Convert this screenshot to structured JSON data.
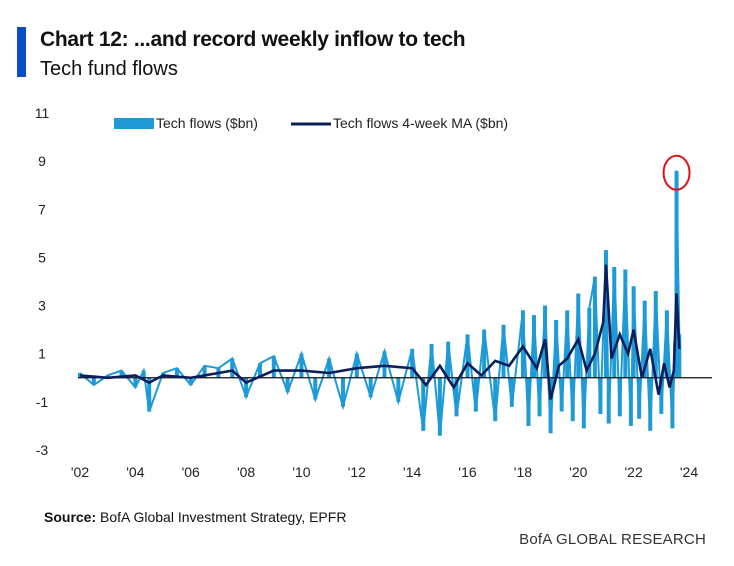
{
  "header": {
    "title": "Chart 12: ...and record weekly inflow to tech",
    "subtitle": "Tech fund flows"
  },
  "footer": {
    "source_label": "Source:",
    "source_text": "BofA Global Investment Strategy, EPFR",
    "brand": "BofA GLOBAL RESEARCH"
  },
  "colors": {
    "accent": "#0a4fc7",
    "flows": "#1e9ad6",
    "ma": "#0c1e5b",
    "highlight": "#e0121b"
  },
  "chart_data": {
    "type": "bar",
    "title": "Tech fund flows",
    "ylim": [
      -3,
      11
    ],
    "yticks": [
      -3,
      -1,
      1,
      3,
      5,
      7,
      9,
      11
    ],
    "xlim": [
      2002,
      2025
    ],
    "xticks": [
      {
        "value": 2002,
        "label": "'02"
      },
      {
        "value": 2004,
        "label": "'04"
      },
      {
        "value": 2006,
        "label": "'06"
      },
      {
        "value": 2008,
        "label": "'08"
      },
      {
        "value": 2010,
        "label": "'10"
      },
      {
        "value": 2012,
        "label": "'12"
      },
      {
        "value": 2014,
        "label": "'14"
      },
      {
        "value": 2016,
        "label": "'16"
      },
      {
        "value": 2018,
        "label": "'18"
      },
      {
        "value": 2020,
        "label": "'20"
      },
      {
        "value": 2022,
        "label": "'22"
      },
      {
        "value": 2024,
        "label": "'24"
      }
    ],
    "legend_position": "top",
    "annotation": {
      "type": "circle",
      "x": 2023.55,
      "y": 8.6,
      "note": "record weekly inflow"
    },
    "series": [
      {
        "name": "Tech flows ($bn)",
        "kind": "bar",
        "x": [
          2002.0,
          2002.5,
          2003.0,
          2003.5,
          2004.0,
          2004.3,
          2004.5,
          2005.0,
          2005.5,
          2006.0,
          2006.5,
          2007.0,
          2007.5,
          2008.0,
          2008.5,
          2009.0,
          2009.5,
          2010.0,
          2010.5,
          2011.0,
          2011.5,
          2012.0,
          2012.5,
          2013.0,
          2013.5,
          2014.0,
          2014.4,
          2014.7,
          2015.0,
          2015.3,
          2015.6,
          2016.0,
          2016.3,
          2016.6,
          2017.0,
          2017.3,
          2017.6,
          2018.0,
          2018.2,
          2018.4,
          2018.6,
          2018.8,
          2019.0,
          2019.2,
          2019.4,
          2019.6,
          2019.8,
          2020.0,
          2020.2,
          2020.4,
          2020.6,
          2020.8,
          2021.0,
          2021.1,
          2021.3,
          2021.5,
          2021.7,
          2021.9,
          2022.0,
          2022.2,
          2022.4,
          2022.6,
          2022.8,
          2023.0,
          2023.2,
          2023.4,
          2023.5,
          2023.55,
          2023.65
        ],
        "values": [
          0.2,
          -0.3,
          0.1,
          0.3,
          -0.4,
          0.3,
          -1.4,
          0.2,
          0.4,
          -0.3,
          0.5,
          0.4,
          0.8,
          -0.8,
          0.6,
          0.9,
          -0.6,
          1.0,
          -0.9,
          0.8,
          -1.2,
          1.0,
          -0.8,
          1.1,
          -1.0,
          1.2,
          -2.2,
          1.4,
          -2.4,
          1.5,
          -1.6,
          1.8,
          -1.4,
          2.0,
          -1.8,
          2.2,
          -1.2,
          2.8,
          -2.0,
          2.6,
          -1.6,
          3.0,
          -2.3,
          2.4,
          -1.4,
          2.8,
          -1.8,
          3.5,
          -2.1,
          2.9,
          4.2,
          -1.5,
          5.3,
          -1.9,
          4.6,
          -1.6,
          4.5,
          -2.0,
          3.8,
          -1.7,
          3.2,
          -2.2,
          3.6,
          -1.5,
          2.8,
          -2.1,
          1.5,
          8.6,
          1.8
        ]
      },
      {
        "name": "Tech flows 4-week MA ($bn)",
        "kind": "line",
        "x": [
          2002.0,
          2003.0,
          2004.0,
          2004.5,
          2005.0,
          2006.0,
          2007.0,
          2007.5,
          2008.0,
          2009.0,
          2010.0,
          2011.0,
          2012.0,
          2013.0,
          2014.0,
          2014.5,
          2015.0,
          2015.5,
          2016.0,
          2016.5,
          2017.0,
          2017.5,
          2018.0,
          2018.5,
          2018.8,
          2019.0,
          2019.3,
          2019.6,
          2020.0,
          2020.3,
          2020.6,
          2020.9,
          2021.0,
          2021.2,
          2021.5,
          2021.8,
          2022.0,
          2022.3,
          2022.6,
          2022.9,
          2023.1,
          2023.3,
          2023.45,
          2023.55,
          2023.65
        ],
        "values": [
          0.1,
          0.0,
          0.1,
          -0.2,
          0.1,
          0.0,
          0.2,
          0.3,
          -0.2,
          0.3,
          0.3,
          0.2,
          0.4,
          0.5,
          0.4,
          -0.3,
          0.5,
          -0.4,
          0.6,
          0.1,
          0.7,
          0.5,
          1.3,
          0.4,
          1.6,
          -0.9,
          0.5,
          0.8,
          1.6,
          0.3,
          1.0,
          2.3,
          4.7,
          0.8,
          1.8,
          1.0,
          2.0,
          0.0,
          1.2,
          -0.7,
          0.6,
          -0.4,
          0.3,
          3.5,
          1.2
        ]
      }
    ]
  }
}
